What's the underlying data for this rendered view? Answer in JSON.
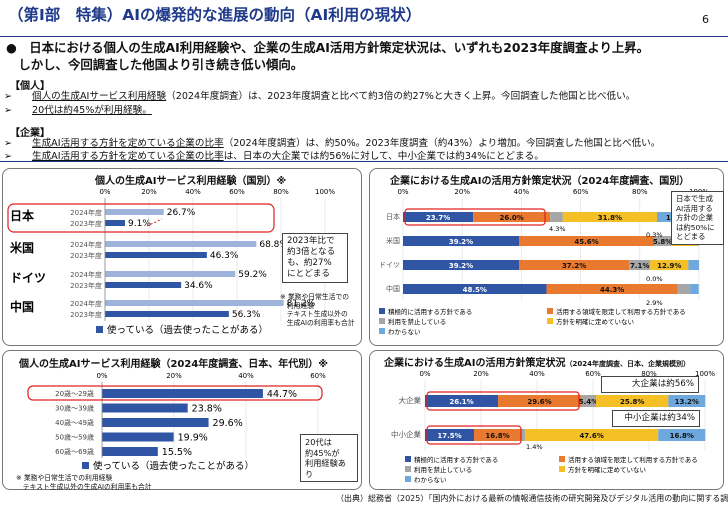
{
  "header": {
    "title": "（第Ⅰ部　特集）AIの爆発的な進展の動向（AI利用の現状）",
    "page": "6"
  },
  "summary": {
    "headline1": "●　日本における個人の生成AI利用経験や、企業の生成AI活用方針策定状況は、いずれも2023年度調査より上昇。",
    "headline2": "　しかし、今回調査した他国より引き続き低い傾向。",
    "individual_label": "【個人】",
    "ind1_pre": "個人の生成AIサービス利用経験",
    "ind1_post": "（2024年度調査）は、2023年度調査と比べて約3倍の約27%と大きく上昇。今回調査した他国と比べ低い。",
    "ind2": "20代は約45%が利用経験。",
    "corporate_label": "【企業】",
    "corp1_pre": "生成AI活用する方針を定めている企業の比率",
    "corp1_post": "（2024年度調査）は、約50%。2023年度調査（約43%）より増加。今回調査した他国と比べ低い。",
    "corp2_pre": "生成AI活用する方針を定めている企業の比率",
    "corp2_post": "は、日本の大企業では約56%に対して、中小企業では約34%にとどまる。",
    "arrow": "➢"
  },
  "panels": {
    "p1_title": "個人の生成AIサービス利用経験（国別）※",
    "p2_title": "企業における生成AIの活用方針策定状況（2024年度調査、国別）",
    "p3_title": "個人の生成AIサービス利用経験（2024年度調査、日本、年代別）※",
    "p4_title": "企業における生成AIの活用方針策定状況",
    "p4_sub": "（2024年度調査、日本、企業規模別）"
  },
  "callouts": {
    "c1": "2023年比で\n約3倍となる\nも、約27%\nにとどまる",
    "c2": "日本で生成\nAI活用する\n方針の企業\nは約50%に\nとどまる",
    "c3": "20代は\n約45%が\n利用経験あり",
    "c4": "大企業は約56%",
    "c5": "中小企業は約34%"
  },
  "notes": {
    "n1": "※ 業務や日常生活での\n　利用経験\n　テキスト生成以外の\n　生成AIの利用率も合計",
    "n3": "※ 業務や日常生活での利用経験\n　テキスト生成以外の生成AIの利用率も合計"
  },
  "source": "（出典）総務省（2025）「国内外における最新の情報通信技術の研究開発及びデジタル活用の動向に関する調査研究」",
  "colors": {
    "navy": "#1f3a8a",
    "blue": "#2f55a4",
    "light_blue": "#9db3d9",
    "orange": "#e8792e",
    "gray": "#a6a6a6",
    "yellow": "#f5c026",
    "sky": "#6fa8dc",
    "red": "#e02020"
  },
  "chart_data": [
    {
      "type": "bar",
      "title": "個人の生成AIサービス利用経験（国別）※",
      "categories": [
        "日本",
        "米国",
        "ドイツ",
        "中国"
      ],
      "series": [
        {
          "name": "2024年度",
          "values": [
            26.7,
            68.8,
            59.2,
            81.2
          ]
        },
        {
          "name": "2023年度",
          "values": [
            9.1,
            46.3,
            34.6,
            56.3
          ]
        }
      ],
      "xlim": [
        0,
        100
      ],
      "ticks": [
        "0%",
        "20%",
        "40%",
        "60%",
        "80%",
        "100%"
      ],
      "legend": "使っている（過去使ったことがある）"
    },
    {
      "type": "bar",
      "stacked": true,
      "title": "企業における生成AIの活用方針策定状況（2024年度調査、国別）",
      "categories": [
        "日本",
        "米国",
        "ドイツ",
        "中国"
      ],
      "series": [
        {
          "name": "積極的に活用する方針である",
          "values": [
            23.7,
            39.2,
            39.2,
            48.5
          ]
        },
        {
          "name": "活用する領域を限定して利用する方針である",
          "values": [
            26.0,
            45.6,
            37.2,
            44.3
          ]
        },
        {
          "name": "利用を禁止している",
          "values": [
            4.3,
            5.8,
            7.1,
            4.2
          ]
        },
        {
          "name": "方針を明確に定めていない",
          "values": [
            31.8,
            9.1,
            12.9,
            0.0
          ]
        },
        {
          "name": "わからない",
          "values": [
            14.2,
            0.3,
            3.6,
            2.9
          ]
        }
      ],
      "ticks": [
        "0%",
        "20%",
        "40%",
        "60%",
        "80%",
        "100%"
      ]
    },
    {
      "type": "bar",
      "title": "個人の生成AIサービス利用経験（2024年度調査、日本、年代別）※",
      "categories": [
        "20歳～29歳",
        "30歳～39歳",
        "40歳～49歳",
        "50歳～59歳",
        "60歳～69歳"
      ],
      "values": [
        44.7,
        23.8,
        29.6,
        19.9,
        15.5
      ],
      "xlim": [
        0,
        60
      ],
      "ticks": [
        "0%",
        "20%",
        "40%",
        "60%"
      ],
      "legend": "使っている（過去使ったことがある）"
    },
    {
      "type": "bar",
      "stacked": true,
      "title": "企業における生成AIの活用方針策定状況（2024年度調査、日本、企業規模別）",
      "categories": [
        "大企業",
        "中小企業"
      ],
      "series": [
        {
          "name": "積極的に活用する方針である",
          "values": [
            26.1,
            17.5
          ]
        },
        {
          "name": "活用する領域を限定して利用する方針である",
          "values": [
            29.6,
            16.8
          ]
        },
        {
          "name": "利用を禁止している",
          "values": [
            5.4,
            1.4
          ]
        },
        {
          "name": "方針を明確に定めていない",
          "values": [
            25.8,
            47.6
          ]
        },
        {
          "name": "わからない",
          "values": [
            13.2,
            16.8
          ]
        }
      ],
      "ticks": [
        "0%",
        "20%",
        "40%",
        "60%",
        "80%",
        "100%"
      ]
    }
  ]
}
